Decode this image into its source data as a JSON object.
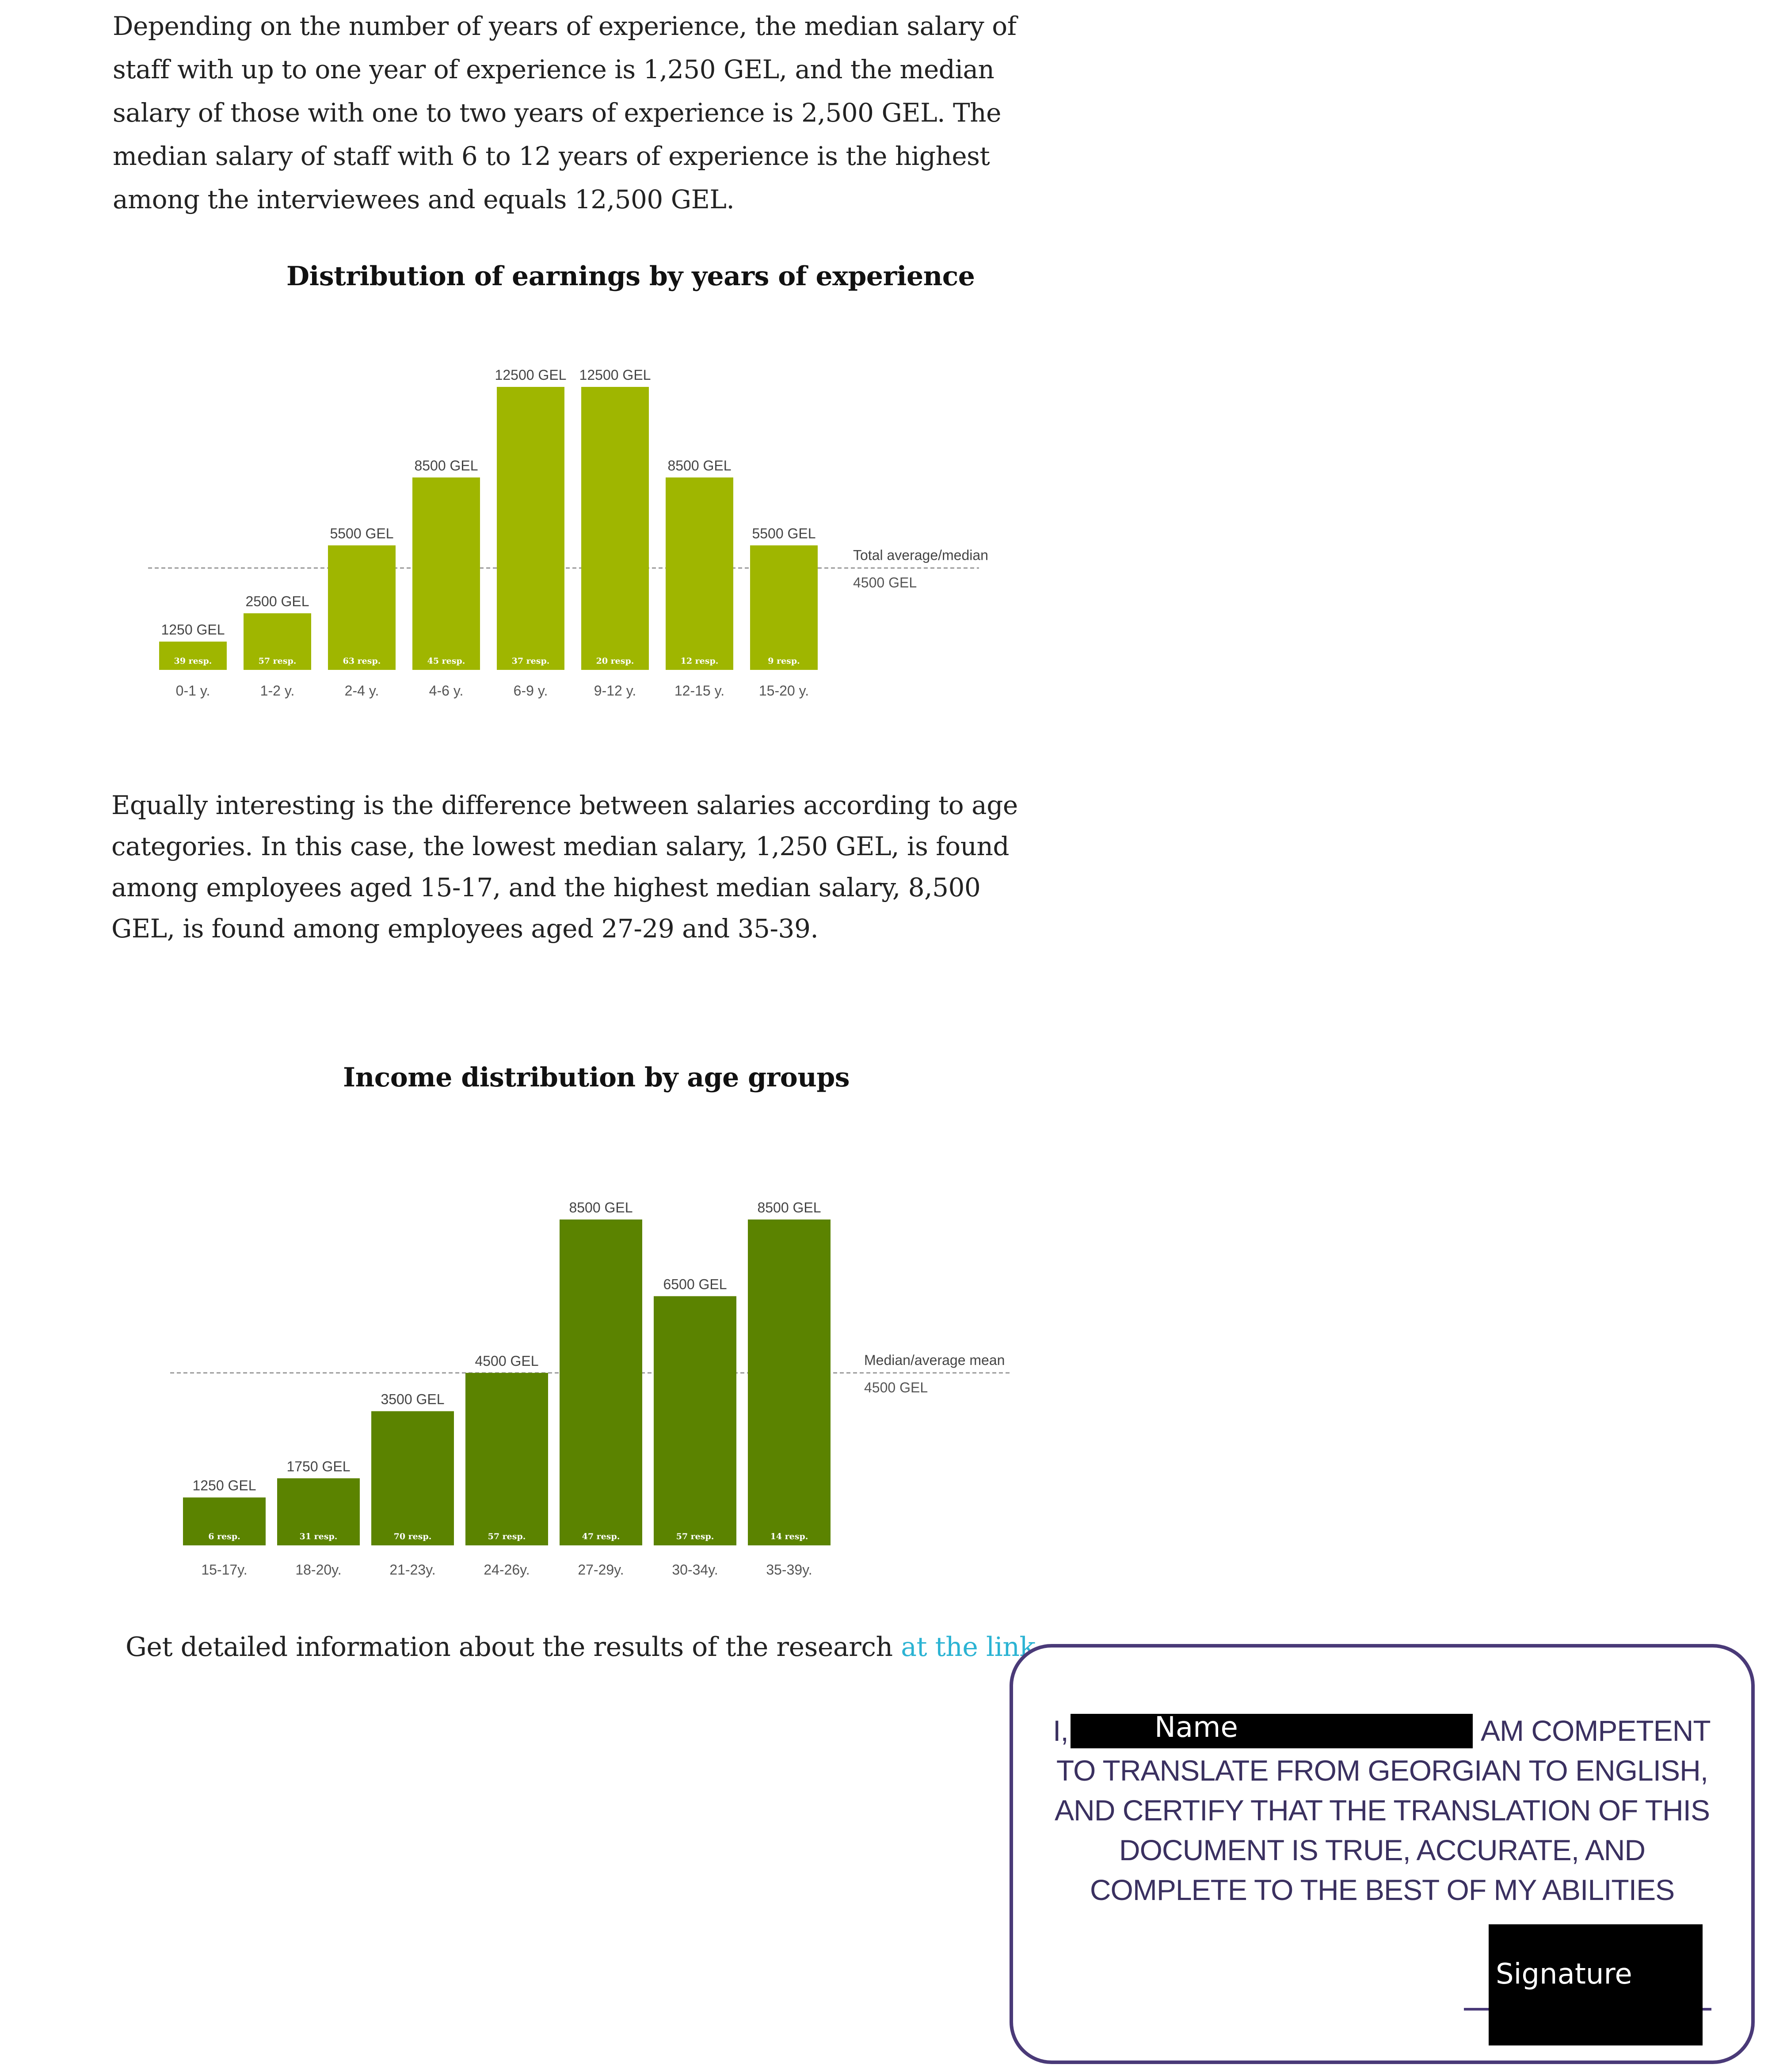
{
  "paragraph1": "Depending on the number of years of experience, the median salary of staff with up to one year of experience is 1,250 GEL, and the median salary of those with one to two years of experience is 2,500 GEL. The median salary of staff with 6 to 12 years of experience is the highest among the interviewees and equals 12,500 GEL.",
  "paragraph2": "Equally interesting is the difference between salaries according to age categories. In this case, the lowest median salary, 1,250 GEL, is found among employees aged 15-17, and the highest median salary, 8,500 GEL, is found among employees aged 27-29 and 35-39.",
  "footer": {
    "text": "Get detailed information about the results of the research ",
    "link_text": "at the link",
    "end": " ."
  },
  "certification": {
    "line1_prefix": "I,",
    "name_redaction": "Name",
    "line1_suffix": "AM COMPETENT",
    "line2": "TO TRANSLATE FROM GEORGIAN TO ENGLISH,",
    "line3": "AND CERTIFY THAT THE TRANSLATION OF THIS",
    "line4": "DOCUMENT IS TRUE, ACCURATE, AND",
    "line5": "COMPLETE TO THE BEST OF MY ABILITIES",
    "signature_redaction": "Signature"
  },
  "chart_data": [
    {
      "type": "bar",
      "title": "Distribution of earnings by years of experience",
      "categories": [
        "0-1 y.",
        "1-2 y.",
        "2-4 y.",
        "4-6 y.",
        "6-9 y.",
        "9-12 y.",
        "12-15 y.",
        "15-20 y."
      ],
      "values": [
        1250,
        2500,
        5500,
        8500,
        12500,
        12500,
        8500,
        5500
      ],
      "value_labels": [
        "1250 GEL",
        "2500 GEL",
        "5500 GEL",
        "8500 GEL",
        "12500 GEL",
        "12500 GEL",
        "8500 GEL",
        "5500 GEL"
      ],
      "respondents": [
        "39 resp.",
        "57 resp.",
        "63 resp.",
        "45 resp.",
        "37 resp.",
        "20 resp.",
        "12 resp.",
        "9 resp."
      ],
      "reference_line": {
        "value": 4500,
        "label": "Total average/median",
        "value_label": "4500 GEL"
      },
      "ylim": [
        0,
        12500
      ],
      "bar_color": "#9fb600",
      "grid": false
    },
    {
      "type": "bar",
      "title": "Income distribution by age groups",
      "categories": [
        "15-17y.",
        "18-20y.",
        "21-23y.",
        "24-26y.",
        "27-29y.",
        "30-34y.",
        "35-39y."
      ],
      "values": [
        1250,
        1750,
        3500,
        4500,
        8500,
        6500,
        8500
      ],
      "value_labels": [
        "1250 GEL",
        "1750 GEL",
        "3500 GEL",
        "4500 GEL",
        "8500 GEL",
        "6500 GEL",
        "8500 GEL"
      ],
      "respondents": [
        "6 resp.",
        "31 resp.",
        "70 resp.",
        "57 resp.",
        "47 resp.",
        "57 resp.",
        "14 resp."
      ],
      "reference_line": {
        "value": 4500,
        "label": "Median/average mean",
        "value_label": "4500 GEL"
      },
      "ylim": [
        0,
        8500
      ],
      "bar_color": "#5b8300",
      "grid": false
    }
  ]
}
